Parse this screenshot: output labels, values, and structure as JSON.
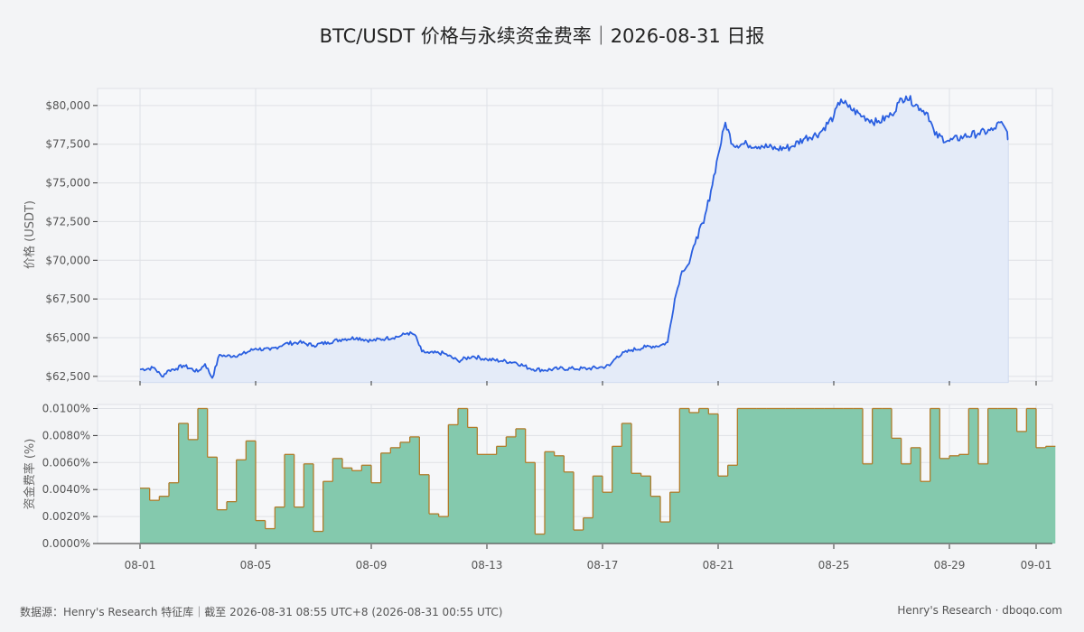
{
  "page": {
    "title": "BTC/USDT 价格与永续资金费率｜2026-08-31 日报",
    "footer_left": "数据源：Henry's Research 特征库｜截至 2026-08-31 08:55 UTC+8 (2026-08-31 00:55 UTC)",
    "footer_right": "Henry's Research · dboqo.com"
  },
  "colors": {
    "price_line": "#2a5fe0",
    "price_fill": "#e4ebf8",
    "funding_fill": "#84c9ad",
    "funding_line": "#b07c2a",
    "grid": "#dfe1e6",
    "plot_bg": "#f6f7f9"
  },
  "chart_data": [
    {
      "type": "line",
      "title": "BTC/USDT 价格与永续资金费率｜2026-08-31 日报",
      "ylabel": "价格 (USDT)",
      "xlabel": "",
      "ylim": [
        62200,
        81100
      ],
      "xlim": [
        "2026-07-31T12:00",
        "2026-09-01T00:00"
      ],
      "grid": true,
      "yticks": [
        {
          "value": 62500,
          "label": "$62,500"
        },
        {
          "value": 65000,
          "label": "$65,000"
        },
        {
          "value": 67500,
          "label": "$67,500"
        },
        {
          "value": 70000,
          "label": "$70,000"
        },
        {
          "value": 72500,
          "label": "$72,500"
        },
        {
          "value": 75000,
          "label": "$75,000"
        },
        {
          "value": 77500,
          "label": "$77,500"
        },
        {
          "value": 80000,
          "label": "$80,000"
        }
      ],
      "series": [
        {
          "values": [
            [
              "08-01 00:00",
              62950
            ],
            [
              "08-01 12:00",
              63050
            ],
            [
              "08-01 18:00",
              62500
            ],
            [
              "08-02 00:00",
              62900
            ],
            [
              "08-02 06:00",
              63000
            ],
            [
              "08-02 12:00",
              63200
            ],
            [
              "08-03 00:00",
              62800
            ],
            [
              "08-03 06:00",
              63300
            ],
            [
              "08-03 12:00",
              62400
            ],
            [
              "08-03 18:00",
              63900
            ],
            [
              "08-04 00:00",
              63800
            ],
            [
              "08-04 12:00",
              63900
            ],
            [
              "08-05 00:00",
              64300
            ],
            [
              "08-05 12:00",
              64200
            ],
            [
              "08-06 00:00",
              64600
            ],
            [
              "08-06 12:00",
              64700
            ],
            [
              "08-07 00:00",
              64500
            ],
            [
              "08-07 12:00",
              64700
            ],
            [
              "08-08 00:00",
              64900
            ],
            [
              "08-08 12:00",
              65000
            ],
            [
              "08-09 00:00",
              64800
            ],
            [
              "08-09 12:00",
              64950
            ],
            [
              "08-10 00:00",
              65100
            ],
            [
              "08-10 06:00",
              65300
            ],
            [
              "08-10 12:00",
              65200
            ],
            [
              "08-10 18:00",
              64100
            ],
            [
              "08-11 00:00",
              64000
            ],
            [
              "08-11 12:00",
              64000
            ],
            [
              "08-12 00:00",
              63500
            ],
            [
              "08-12 12:00",
              63800
            ],
            [
              "08-13 00:00",
              63600
            ],
            [
              "08-13 12:00",
              63500
            ],
            [
              "08-14 00:00",
              63400
            ],
            [
              "08-14 12:00",
              63000
            ],
            [
              "08-15 00:00",
              62900
            ],
            [
              "08-15 12:00",
              63000
            ],
            [
              "08-16 00:00",
              63000
            ],
            [
              "08-16 12:00",
              63000
            ],
            [
              "08-17 00:00",
              63100
            ],
            [
              "08-17 06:00",
              63200
            ],
            [
              "08-17 12:00",
              63800
            ],
            [
              "08-18 00:00",
              64200
            ],
            [
              "08-18 12:00",
              64400
            ],
            [
              "08-19 00:00",
              64500
            ],
            [
              "08-19 06:00",
              64700
            ],
            [
              "08-19 12:00",
              67500
            ],
            [
              "08-19 18:00",
              69300
            ],
            [
              "08-20 00:00",
              69800
            ],
            [
              "08-20 06:00",
              71500
            ],
            [
              "08-20 12:00",
              72400
            ],
            [
              "08-20 18:00",
              74500
            ],
            [
              "08-21 00:00",
              76800
            ],
            [
              "08-21 06:00",
              78900
            ],
            [
              "08-21 12:00",
              77500
            ],
            [
              "08-22 00:00",
              77500
            ],
            [
              "08-22 12:00",
              77400
            ],
            [
              "08-23 00:00",
              77200
            ],
            [
              "08-23 12:00",
              77300
            ],
            [
              "08-24 00:00",
              77900
            ],
            [
              "08-24 12:00",
              78200
            ],
            [
              "08-25 00:00",
              79300
            ],
            [
              "08-25 06:00",
              80400
            ],
            [
              "08-25 12:00",
              79900
            ],
            [
              "08-26 00:00",
              79300
            ],
            [
              "08-26 12:00",
              78900
            ],
            [
              "08-27 00:00",
              79400
            ],
            [
              "08-27 06:00",
              80200
            ],
            [
              "08-27 12:00",
              80600
            ],
            [
              "08-28 00:00",
              79800
            ],
            [
              "08-28 06:00",
              79500
            ],
            [
              "08-28 12:00",
              78100
            ],
            [
              "08-29 00:00",
              77700
            ],
            [
              "08-29 12:00",
              78000
            ],
            [
              "08-30 00:00",
              78200
            ],
            [
              "08-30 12:00",
              78400
            ],
            [
              "08-30 18:00",
              78900
            ],
            [
              "08-31 00:00",
              78300
            ],
            [
              "08-31 00:55",
              77800
            ]
          ]
        }
      ]
    },
    {
      "type": "area",
      "ylabel": "资金费率 (%)",
      "xlabel": "",
      "ylim": [
        0,
        0.0103
      ],
      "grid": true,
      "yticks": [
        {
          "value": 0.0,
          "label": "0.0000%"
        },
        {
          "value": 0.002,
          "label": "0.0020%"
        },
        {
          "value": 0.004,
          "label": "0.0040%"
        },
        {
          "value": 0.006,
          "label": "0.0060%"
        },
        {
          "value": 0.008,
          "label": "0.0080%"
        },
        {
          "value": 0.01,
          "label": "0.0100%"
        }
      ],
      "xticks": [
        "08-01",
        "08-05",
        "08-09",
        "08-13",
        "08-17",
        "08-21",
        "08-25",
        "08-29",
        "09-01"
      ],
      "step": "8h",
      "start": "08-01 00:00",
      "values": [
        0.0041,
        0.0032,
        0.0035,
        0.0045,
        0.0089,
        0.0077,
        0.01,
        0.0064,
        0.0025,
        0.0031,
        0.0062,
        0.0076,
        0.0017,
        0.0011,
        0.0027,
        0.0066,
        0.0027,
        0.0059,
        0.0009,
        0.0046,
        0.0063,
        0.0056,
        0.0054,
        0.0058,
        0.0045,
        0.0067,
        0.0071,
        0.0075,
        0.0079,
        0.0051,
        0.0022,
        0.002,
        0.0088,
        0.01,
        0.0086,
        0.0066,
        0.0066,
        0.0072,
        0.0079,
        0.0085,
        0.006,
        0.0007,
        0.0068,
        0.0065,
        0.0053,
        0.001,
        0.0019,
        0.005,
        0.0038,
        0.0072,
        0.0089,
        0.0052,
        0.005,
        0.0035,
        0.0016,
        0.0038,
        0.01,
        0.0097,
        0.01,
        0.0096,
        0.005,
        0.0058,
        0.01,
        0.01,
        0.01,
        0.01,
        0.01,
        0.01,
        0.01,
        0.01,
        0.01,
        0.01,
        0.01,
        0.01,
        0.01,
        0.0059,
        0.01,
        0.01,
        0.0078,
        0.0059,
        0.0071,
        0.0046,
        0.01,
        0.0063,
        0.0065,
        0.0066,
        0.01,
        0.0059,
        0.01,
        0.01,
        0.01,
        0.0083,
        0.01,
        0.0071,
        0.0072
      ]
    }
  ]
}
